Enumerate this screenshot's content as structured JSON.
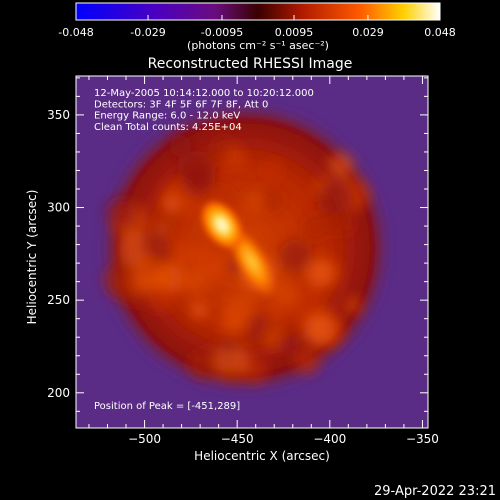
{
  "colorbar": {
    "tick_labels": [
      "-0.048",
      "-0.029",
      "-0.0095",
      "0.0095",
      "0.029",
      "0.048"
    ],
    "tick_values": [
      -0.048,
      -0.029,
      -0.0095,
      0.0095,
      0.029,
      0.048
    ],
    "range": [
      -0.048,
      0.048
    ],
    "units_label": "(photons cm⁻² s⁻¹ asec⁻²)",
    "colors": [
      "#0000ff",
      "#6a0dad",
      "#b01a00",
      "#ff4000",
      "#ffd000",
      "#ffffff"
    ]
  },
  "chart_data": {
    "type": "heatmap",
    "title": "Reconstructed RHESSI Image",
    "xlabel": "Heliocentric X (arcsec)",
    "ylabel": "Heliocentric Y (arcsec)",
    "xlim": [
      -537,
      -347
    ],
    "ylim": [
      181,
      371
    ],
    "x_ticks": [
      -500,
      -450,
      -400,
      -350
    ],
    "x_tick_labels": [
      "−500",
      "−450",
      "−400",
      "−350"
    ],
    "y_ticks": [
      200,
      250,
      300,
      350
    ],
    "y_tick_labels": [
      "200",
      "250",
      "300",
      "350"
    ],
    "grid": false,
    "info_lines": [
      "12-May-2005 10:14:12.000 to 10:20:12.000",
      "Detectors: 3F 4F 5F 6F 7F 8F, Att 0",
      "Energy Range: 6.0 - 12.0 keV",
      "Clean    Total counts: 4.25E+04"
    ],
    "peak_label": "Position of Peak = [-451,289]",
    "peak": {
      "x": -451,
      "y": 289
    },
    "background_color": "#5a2c86"
  },
  "footer": {
    "timestamp": "29-Apr-2022 23:21"
  }
}
